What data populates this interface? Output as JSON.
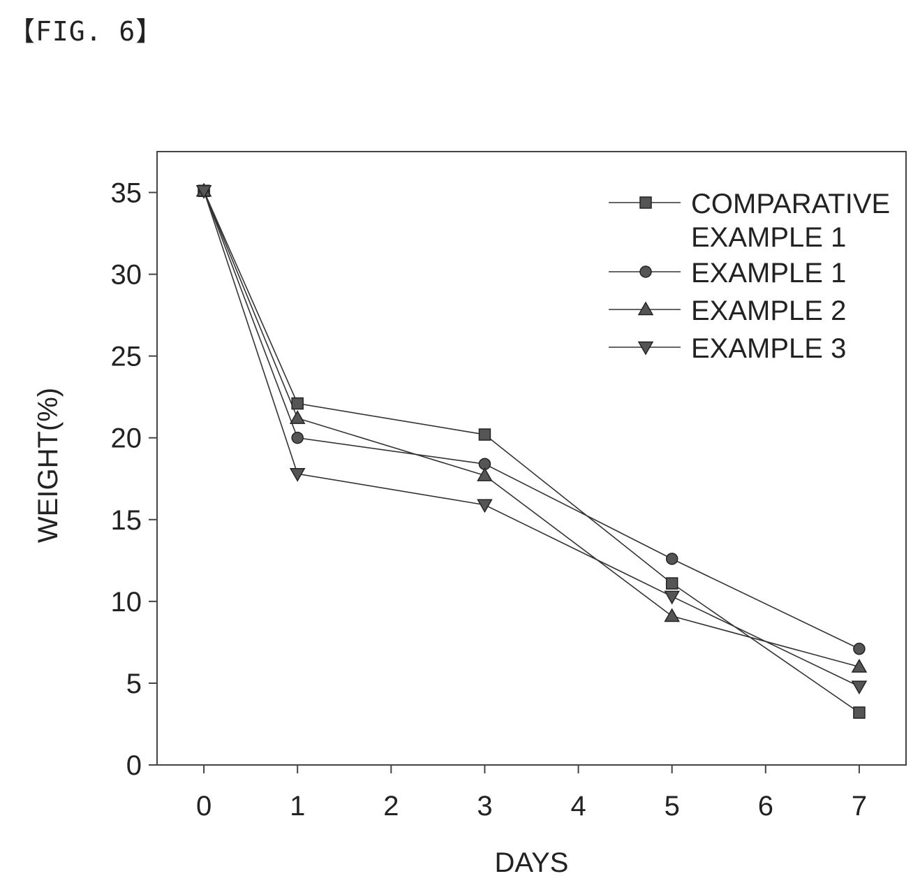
{
  "figure_label": "【FIG. 6】",
  "chart_data": {
    "type": "line",
    "xlabel": "DAYS",
    "ylabel": "WEIGHT(%)",
    "xlim": [
      -0.5,
      7.5
    ],
    "ylim": [
      0,
      37.5
    ],
    "xticks": [
      0,
      1,
      2,
      3,
      4,
      5,
      6,
      7
    ],
    "yticks": [
      0,
      5,
      10,
      15,
      20,
      25,
      30,
      35
    ],
    "grid": false,
    "legend_position": "top-right",
    "series": [
      {
        "name": [
          "COMPARATIVE",
          "EXAMPLE 1"
        ],
        "marker": "square",
        "x": [
          0,
          1,
          3,
          5,
          7
        ],
        "y": [
          35.1,
          22.1,
          20.2,
          11.1,
          3.2
        ]
      },
      {
        "name": [
          "EXAMPLE 1"
        ],
        "marker": "circle",
        "x": [
          0,
          1,
          3,
          5,
          7
        ],
        "y": [
          35.1,
          20.0,
          18.4,
          12.6,
          7.1
        ]
      },
      {
        "name": [
          "EXAMPLE 2"
        ],
        "marker": "triangle-up",
        "x": [
          0,
          1,
          3,
          5,
          7
        ],
        "y": [
          35.1,
          21.2,
          17.7,
          9.1,
          6.0
        ]
      },
      {
        "name": [
          "EXAMPLE 3"
        ],
        "marker": "triangle-down",
        "x": [
          0,
          1,
          3,
          5,
          7
        ],
        "y": [
          35.1,
          17.8,
          15.9,
          10.3,
          4.8
        ]
      }
    ]
  }
}
